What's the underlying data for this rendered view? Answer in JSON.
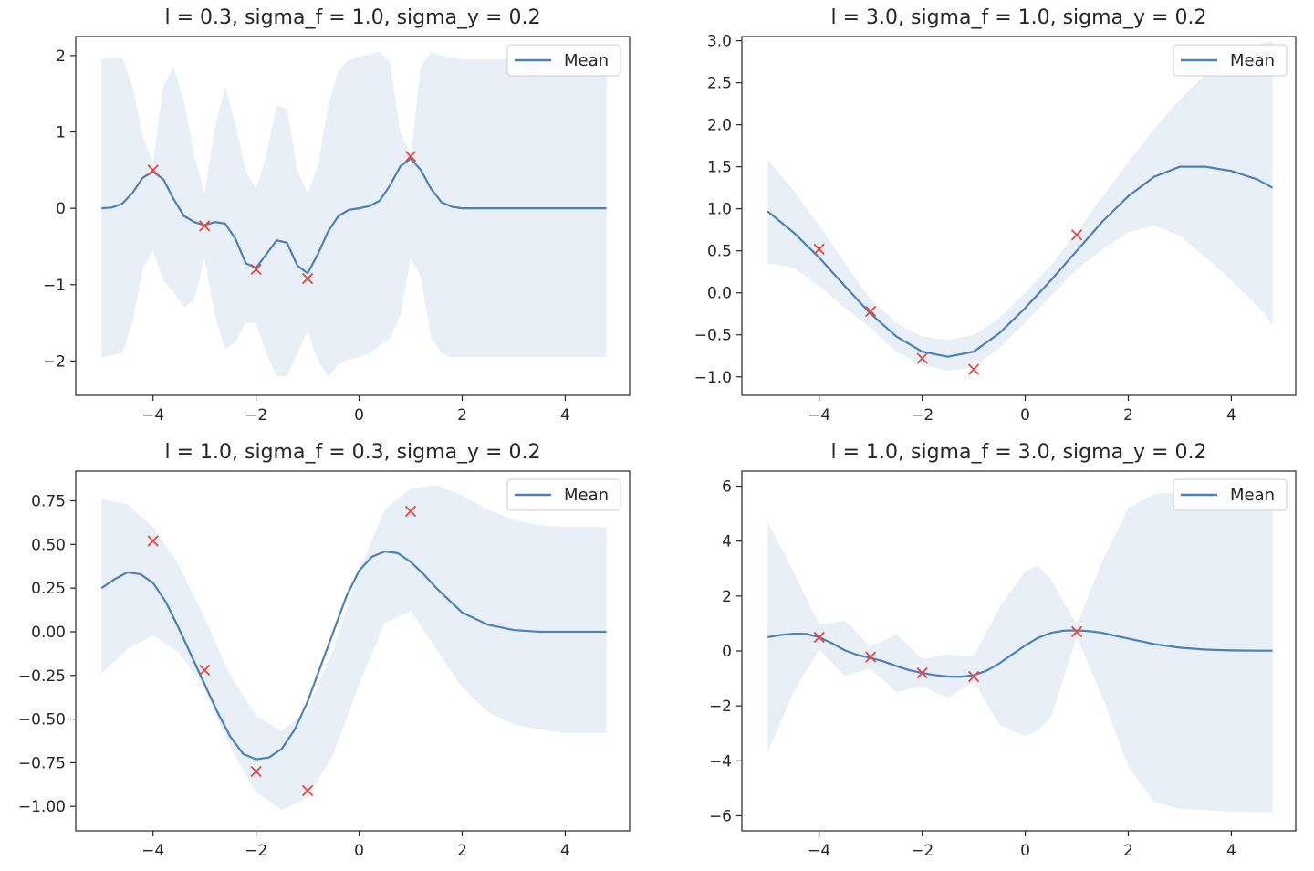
{
  "colors": {
    "mean": "#4a81b9",
    "band": "#e8eff7",
    "points": "#e8473f",
    "axes": "#262626"
  },
  "chart_data": [
    {
      "type": "line",
      "title": "l = 0.3, sigma_f = 1.0, sigma_y = 0.2",
      "legend": {
        "label": "Mean",
        "placement": "top-right"
      },
      "xlim": [
        -5.5,
        5.25
      ],
      "ylim": [
        -2.45,
        2.25
      ],
      "xticks": [
        -4,
        -2,
        0,
        2,
        4
      ],
      "xtick_labels": [
        "−4",
        "−2",
        "0",
        "2",
        "4"
      ],
      "yticks": [
        -2,
        -1,
        0,
        1,
        2
      ],
      "ytick_labels": [
        "−2",
        "−1",
        "0",
        "1",
        "2"
      ],
      "mean": {
        "x": [
          -5.0,
          -4.8,
          -4.6,
          -4.4,
          -4.2,
          -4.0,
          -3.8,
          -3.6,
          -3.4,
          -3.2,
          -3.0,
          -2.8,
          -2.6,
          -2.4,
          -2.2,
          -2.0,
          -1.8,
          -1.6,
          -1.4,
          -1.2,
          -1.0,
          -0.8,
          -0.6,
          -0.4,
          -0.2,
          0.0,
          0.2,
          0.4,
          0.6,
          0.8,
          1.0,
          1.2,
          1.4,
          1.6,
          1.8,
          2.0,
          2.5,
          3.0,
          3.5,
          4.0,
          4.5,
          4.8
        ],
        "y": [
          0.0,
          0.01,
          0.06,
          0.2,
          0.4,
          0.48,
          0.38,
          0.12,
          -0.1,
          -0.18,
          -0.22,
          -0.18,
          -0.2,
          -0.4,
          -0.72,
          -0.78,
          -0.6,
          -0.42,
          -0.45,
          -0.75,
          -0.85,
          -0.6,
          -0.3,
          -0.1,
          -0.02,
          0.0,
          0.03,
          0.1,
          0.3,
          0.55,
          0.65,
          0.5,
          0.25,
          0.08,
          0.02,
          0.0,
          0.0,
          0.0,
          0.0,
          0.0,
          0.0,
          0.0
        ]
      },
      "band": {
        "x": [
          -5.0,
          -4.6,
          -4.4,
          -4.2,
          -4.0,
          -3.8,
          -3.6,
          -3.4,
          -3.2,
          -3.0,
          -2.8,
          -2.6,
          -2.4,
          -2.2,
          -2.0,
          -1.8,
          -1.6,
          -1.4,
          -1.2,
          -1.0,
          -0.8,
          -0.6,
          -0.4,
          -0.2,
          0.0,
          0.2,
          0.4,
          0.6,
          0.8,
          1.0,
          1.2,
          1.4,
          1.6,
          1.8,
          2.0,
          2.5,
          3.0,
          3.5,
          4.0,
          4.5,
          4.8
        ],
        "upper": [
          1.95,
          1.98,
          1.6,
          0.95,
          0.6,
          1.6,
          1.85,
          1.4,
          0.7,
          0.2,
          1.05,
          1.6,
          1.1,
          0.5,
          0.25,
          0.7,
          1.35,
          1.3,
          0.5,
          0.2,
          0.55,
          1.35,
          1.8,
          1.95,
          1.98,
          2.02,
          2.05,
          1.9,
          1.0,
          0.7,
          1.85,
          2.05,
          2.0,
          1.98,
          1.95,
          1.95,
          1.95,
          1.95,
          1.95,
          1.95,
          1.95
        ],
        "lower": [
          -1.95,
          -1.9,
          -1.5,
          -0.8,
          -0.55,
          -0.95,
          -1.1,
          -1.3,
          -1.2,
          -0.65,
          -1.4,
          -1.85,
          -1.75,
          -1.5,
          -1.5,
          -1.9,
          -2.2,
          -2.2,
          -1.9,
          -1.6,
          -2.0,
          -2.2,
          -2.05,
          -1.98,
          -1.95,
          -1.9,
          -1.8,
          -1.7,
          -1.4,
          -0.65,
          -0.9,
          -1.7,
          -1.9,
          -1.95,
          -1.95,
          -1.95,
          -1.95,
          -1.95,
          -1.95,
          -1.95,
          -1.95
        ]
      },
      "points": {
        "x": [
          -4,
          -3,
          -2,
          -1,
          1
        ],
        "y": [
          0.5,
          -0.23,
          -0.8,
          -0.92,
          0.68
        ]
      }
    },
    {
      "type": "line",
      "title": "l = 3.0, sigma_f = 1.0, sigma_y = 0.2",
      "legend": {
        "label": "Mean",
        "placement": "top-right"
      },
      "xlim": [
        -5.5,
        5.25
      ],
      "ylim": [
        -1.22,
        3.05
      ],
      "xticks": [
        -4,
        -2,
        0,
        2,
        4
      ],
      "xtick_labels": [
        "−4",
        "−2",
        "0",
        "2",
        "4"
      ],
      "yticks": [
        -1.0,
        -0.5,
        0.0,
        0.5,
        1.0,
        1.5,
        2.0,
        2.5,
        3.0
      ],
      "ytick_labels": [
        "−1.0",
        "−0.5",
        "0.0",
        "0.5",
        "1.0",
        "1.5",
        "2.0",
        "2.5",
        "3.0"
      ],
      "mean": {
        "x": [
          -5.0,
          -4.5,
          -4.0,
          -3.5,
          -3.0,
          -2.5,
          -2.0,
          -1.5,
          -1.0,
          -0.5,
          0.0,
          0.5,
          1.0,
          1.5,
          2.0,
          2.5,
          3.0,
          3.5,
          4.0,
          4.5,
          4.8
        ],
        "y": [
          0.97,
          0.72,
          0.42,
          0.08,
          -0.25,
          -0.52,
          -0.7,
          -0.76,
          -0.7,
          -0.48,
          -0.18,
          0.15,
          0.5,
          0.85,
          1.15,
          1.38,
          1.5,
          1.5,
          1.45,
          1.35,
          1.25
        ]
      },
      "band": {
        "x": [
          -5.0,
          -4.5,
          -4.0,
          -3.5,
          -3.0,
          -2.5,
          -2.0,
          -1.5,
          -1.0,
          -0.5,
          0.0,
          0.5,
          1.0,
          1.5,
          2.0,
          2.5,
          3.0,
          3.5,
          4.0,
          4.5,
          4.8
        ],
        "upper": [
          1.58,
          1.22,
          0.8,
          0.35,
          -0.08,
          -0.36,
          -0.52,
          -0.56,
          -0.5,
          -0.3,
          0.0,
          0.33,
          0.72,
          1.15,
          1.55,
          1.95,
          2.3,
          2.6,
          2.8,
          2.95,
          3.0
        ],
        "lower": [
          0.35,
          0.3,
          0.08,
          -0.18,
          -0.42,
          -0.7,
          -0.86,
          -0.93,
          -0.88,
          -0.66,
          -0.35,
          -0.04,
          0.28,
          0.52,
          0.72,
          0.8,
          0.68,
          0.42,
          0.15,
          -0.15,
          -0.38
        ]
      },
      "points": {
        "x": [
          -4,
          -3,
          -2,
          -1,
          1
        ],
        "y": [
          0.52,
          -0.22,
          -0.78,
          -0.91,
          0.69
        ]
      }
    },
    {
      "type": "line",
      "title": "l = 1.0, sigma_f = 0.3, sigma_y = 0.2",
      "legend": {
        "label": "Mean",
        "placement": "top-right"
      },
      "xlim": [
        -5.5,
        5.25
      ],
      "ylim": [
        -1.14,
        0.92
      ],
      "xticks": [
        -4,
        -2,
        0,
        2,
        4
      ],
      "xtick_labels": [
        "−4",
        "−2",
        "0",
        "2",
        "4"
      ],
      "yticks": [
        -1.0,
        -0.75,
        -0.5,
        -0.25,
        0.0,
        0.25,
        0.5,
        0.75
      ],
      "ytick_labels": [
        "−1.00",
        "−0.75",
        "−0.50",
        "−0.25",
        "0.00",
        "0.25",
        "0.50",
        "0.75"
      ],
      "mean": {
        "x": [
          -5.0,
          -4.75,
          -4.5,
          -4.25,
          -4.0,
          -3.75,
          -3.5,
          -3.25,
          -3.0,
          -2.75,
          -2.5,
          -2.25,
          -2.0,
          -1.75,
          -1.5,
          -1.25,
          -1.0,
          -0.75,
          -0.5,
          -0.25,
          0.0,
          0.25,
          0.5,
          0.75,
          1.0,
          1.25,
          1.5,
          1.75,
          2.0,
          2.5,
          3.0,
          3.5,
          4.0,
          4.5,
          4.8
        ],
        "y": [
          0.25,
          0.3,
          0.34,
          0.33,
          0.28,
          0.17,
          0.02,
          -0.14,
          -0.3,
          -0.46,
          -0.6,
          -0.7,
          -0.73,
          -0.72,
          -0.67,
          -0.56,
          -0.4,
          -0.2,
          0.0,
          0.2,
          0.35,
          0.43,
          0.46,
          0.45,
          0.4,
          0.33,
          0.25,
          0.18,
          0.11,
          0.04,
          0.01,
          0.0,
          0.0,
          0.0,
          0.0
        ]
      },
      "band": {
        "x": [
          -5.0,
          -4.5,
          -4.0,
          -3.5,
          -3.0,
          -2.5,
          -2.0,
          -1.5,
          -1.0,
          -0.5,
          0.0,
          0.5,
          1.0,
          1.5,
          2.0,
          2.5,
          3.0,
          3.5,
          4.0,
          4.5,
          4.8
        ],
        "upper": [
          0.76,
          0.73,
          0.6,
          0.38,
          0.08,
          -0.25,
          -0.48,
          -0.57,
          -0.45,
          -0.1,
          0.35,
          0.7,
          0.82,
          0.84,
          0.78,
          0.7,
          0.64,
          0.61,
          0.6,
          0.6,
          0.6
        ],
        "lower": [
          -0.24,
          -0.1,
          -0.02,
          -0.12,
          -0.32,
          -0.66,
          -0.92,
          -1.02,
          -0.95,
          -0.7,
          -0.3,
          0.05,
          0.12,
          -0.1,
          -0.32,
          -0.46,
          -0.53,
          -0.56,
          -0.58,
          -0.58,
          -0.58
        ]
      },
      "points": {
        "x": [
          -4,
          -3,
          -2,
          -1,
          1
        ],
        "y": [
          0.52,
          -0.22,
          -0.8,
          -0.91,
          0.69
        ]
      }
    },
    {
      "type": "line",
      "title": "l = 1.0, sigma_f = 3.0, sigma_y = 0.2",
      "legend": {
        "label": "Mean",
        "placement": "top-right"
      },
      "xlim": [
        -5.5,
        5.25
      ],
      "ylim": [
        -6.55,
        6.55
      ],
      "xticks": [
        -4,
        -2,
        0,
        2,
        4
      ],
      "xtick_labels": [
        "−4",
        "−2",
        "0",
        "2",
        "4"
      ],
      "yticks": [
        -6,
        -4,
        -2,
        0,
        2,
        4,
        6
      ],
      "ytick_labels": [
        "−6",
        "−4",
        "−2",
        "0",
        "2",
        "4",
        "6"
      ],
      "mean": {
        "x": [
          -5.0,
          -4.75,
          -4.5,
          -4.25,
          -4.0,
          -3.75,
          -3.5,
          -3.25,
          -3.0,
          -2.75,
          -2.5,
          -2.25,
          -2.0,
          -1.75,
          -1.5,
          -1.25,
          -1.0,
          -0.75,
          -0.5,
          -0.25,
          0.0,
          0.25,
          0.5,
          0.75,
          1.0,
          1.25,
          1.5,
          1.75,
          2.0,
          2.5,
          3.0,
          3.5,
          4.0,
          4.5,
          4.8
        ],
        "y": [
          0.5,
          0.58,
          0.63,
          0.62,
          0.5,
          0.28,
          0.02,
          -0.15,
          -0.25,
          -0.38,
          -0.55,
          -0.7,
          -0.8,
          -0.88,
          -0.93,
          -0.94,
          -0.88,
          -0.72,
          -0.45,
          -0.12,
          0.2,
          0.48,
          0.66,
          0.74,
          0.75,
          0.72,
          0.66,
          0.55,
          0.45,
          0.25,
          0.12,
          0.05,
          0.02,
          0.01,
          0.01
        ]
      },
      "band": {
        "x": [
          -5.0,
          -4.5,
          -4.0,
          -3.5,
          -3.0,
          -2.5,
          -2.0,
          -1.5,
          -1.0,
          -0.5,
          0.0,
          0.25,
          0.5,
          1.0,
          1.5,
          2.0,
          2.5,
          3.0,
          3.5,
          4.0,
          4.5,
          4.8
        ],
        "upper": [
          4.7,
          2.9,
          0.95,
          1.1,
          0.15,
          0.6,
          -0.3,
          -0.12,
          -0.2,
          1.6,
          2.9,
          3.1,
          2.6,
          0.95,
          3.3,
          5.2,
          5.7,
          5.8,
          5.85,
          5.85,
          5.85,
          5.85
        ],
        "lower": [
          -3.7,
          -1.5,
          0.05,
          -0.9,
          -0.65,
          -1.5,
          -1.3,
          -1.7,
          -1.1,
          -2.7,
          -3.1,
          -2.9,
          -2.4,
          0.5,
          -1.7,
          -4.2,
          -5.5,
          -5.75,
          -5.8,
          -5.85,
          -5.85,
          -5.85
        ]
      },
      "points": {
        "x": [
          -4,
          -3,
          -2,
          -1,
          1
        ],
        "y": [
          0.5,
          -0.22,
          -0.8,
          -0.93,
          0.7
        ]
      }
    }
  ]
}
